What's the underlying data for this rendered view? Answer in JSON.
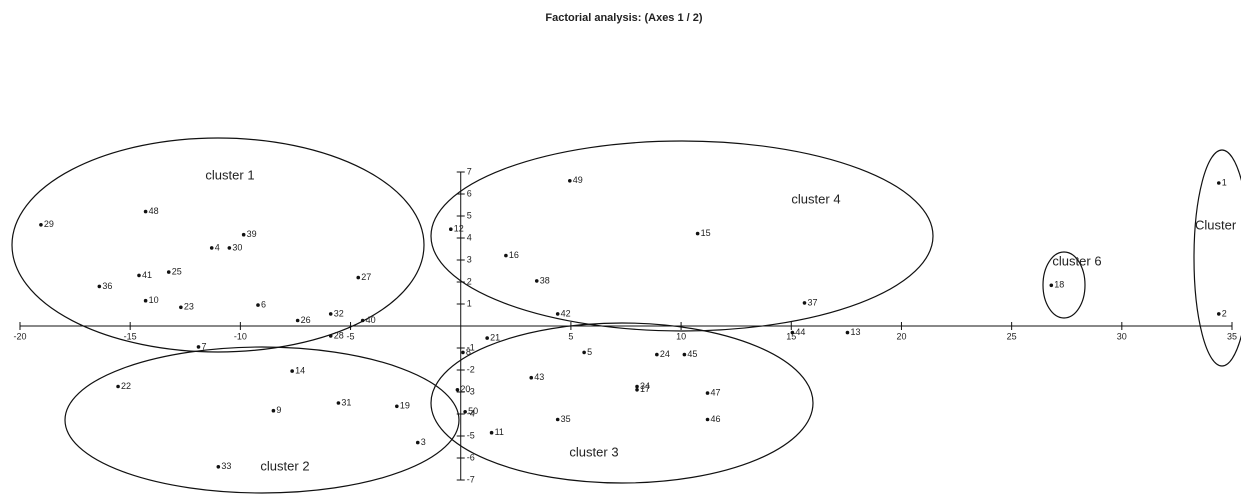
{
  "chart_data": {
    "type": "scatter",
    "title": "Factorial analysis: (Axes 1 / 2)",
    "labels": [
      "1",
      "2",
      "3",
      "4",
      "5",
      "6",
      "7",
      "8",
      "9",
      "10",
      "11",
      "12",
      "13",
      "14",
      "15",
      "16",
      "17",
      "18",
      "19",
      "20",
      "21",
      "22",
      "23",
      "24",
      "25",
      "26",
      "27",
      "28",
      "29",
      "30",
      "31",
      "32",
      "33",
      "34",
      "35",
      "36",
      "37",
      "38",
      "39",
      "40",
      "41",
      "42",
      "43",
      "44",
      "45",
      "46",
      "47",
      "48",
      "49",
      "50"
    ],
    "x": [
      34.4,
      34.4,
      -1.95,
      -11.3,
      5.6,
      -9.2,
      -11.9,
      0.1,
      -8.5,
      -14.3,
      1.4,
      -0.45,
      17.55,
      -7.65,
      10.75,
      2.05,
      8.0,
      26.8,
      -2.9,
      -0.15,
      1.2,
      -15.55,
      -12.7,
      8.9,
      -13.25,
      -7.4,
      -4.65,
      -5.9,
      -19.05,
      -10.5,
      -5.55,
      -5.9,
      -11.0,
      8.0,
      4.4,
      -16.4,
      15.6,
      3.45,
      -9.85,
      -4.45,
      -14.6,
      4.4,
      3.2,
      15.05,
      10.15,
      11.2,
      11.2,
      -14.3,
      4.95,
      0.2
    ],
    "y": [
      6.5,
      0.55,
      -5.3,
      3.55,
      -1.2,
      0.95,
      -0.95,
      -1.2,
      -3.85,
      1.15,
      -4.85,
      4.4,
      -0.3,
      -2.05,
      4.2,
      3.2,
      -2.9,
      1.85,
      -3.65,
      -2.9,
      -0.55,
      -2.75,
      0.85,
      -1.3,
      2.45,
      0.25,
      2.2,
      -0.45,
      4.6,
      3.55,
      -3.5,
      0.55,
      -6.4,
      -2.75,
      -4.25,
      1.8,
      1.05,
      2.05,
      4.15,
      0.25,
      2.3,
      0.55,
      -2.35,
      -0.3,
      -1.3,
      -4.25,
      -3.05,
      5.2,
      6.6,
      -3.9
    ],
    "color": "#111111",
    "clusters": [
      "cluster 1",
      "cluster 2",
      "cluster 3",
      "cluster 4",
      "cluster 6",
      "Cluster"
    ],
    "xlim": [
      -20,
      35
    ],
    "ylim": [
      -7,
      7
    ],
    "xticks": [
      -20,
      -15,
      -10,
      -5,
      5,
      10,
      15,
      20,
      25,
      30,
      35
    ],
    "yticks": [
      -7,
      -6,
      -5,
      -4,
      -3,
      -2,
      -1,
      1,
      2,
      3,
      4,
      5,
      6,
      7
    ]
  }
}
